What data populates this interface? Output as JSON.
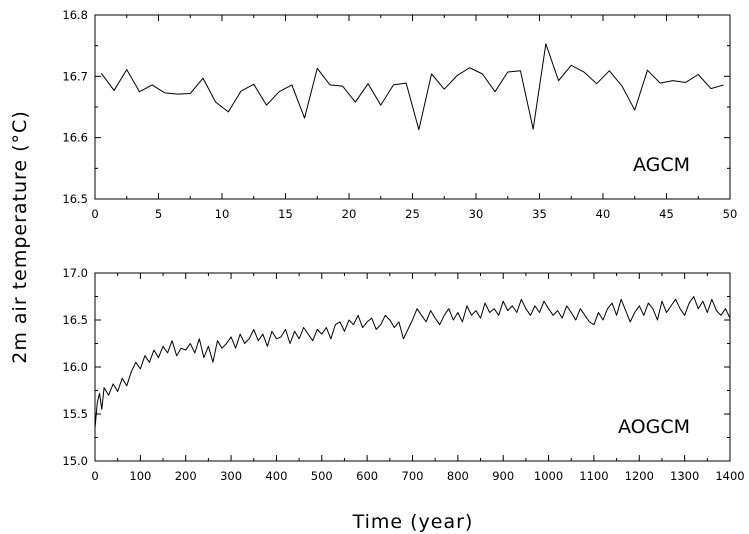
{
  "chart_data": [
    {
      "type": "line",
      "panel_label": "AGCM",
      "xlim": [
        0,
        50
      ],
      "ylim": [
        16.5,
        16.8
      ],
      "xticks": [
        "0",
        "5",
        "10",
        "15",
        "20",
        "25",
        "30",
        "35",
        "40",
        "45",
        "50"
      ],
      "yticks": [
        "16.5",
        "16.6",
        "16.7",
        "16.8"
      ],
      "series": [
        {
          "x": [
            0.5,
            1.5,
            2.5,
            3.5,
            4.5,
            5.5,
            6.5,
            7.5,
            8.5,
            9.5,
            10.5,
            11.5,
            12.5,
            13.5,
            14.5,
            15.5,
            16.5,
            17.5,
            18.5,
            19.5,
            20.5,
            21.5,
            22.5,
            23.5,
            24.5,
            25.5,
            26.5,
            27.5,
            28.5,
            29.5,
            30.5,
            31.5,
            32.5,
            33.5,
            34.5,
            35.5,
            36.5,
            37.5,
            38.5,
            39.5,
            40.5,
            41.5,
            42.5,
            43.5,
            44.5,
            45.5,
            46.5,
            47.5,
            48.5,
            49.5
          ],
          "values": [
            16.705,
            16.677,
            16.711,
            16.675,
            16.686,
            16.673,
            16.671,
            16.672,
            16.697,
            16.658,
            16.642,
            16.676,
            16.687,
            16.653,
            16.675,
            16.686,
            16.632,
            16.713,
            16.686,
            16.684,
            16.658,
            16.688,
            16.653,
            16.686,
            16.689,
            16.613,
            16.704,
            16.679,
            16.701,
            16.714,
            16.704,
            16.675,
            16.707,
            16.709,
            16.614,
            16.753,
            16.693,
            16.718,
            16.707,
            16.688,
            16.709,
            16.684,
            16.645,
            16.71,
            16.689,
            16.693,
            16.69,
            16.703,
            16.68,
            16.686
          ]
        }
      ]
    },
    {
      "type": "line",
      "panel_label": "AOGCM",
      "xlabel": "Time (year)",
      "xlim": [
        0,
        1400
      ],
      "ylim": [
        15.0,
        17.0
      ],
      "xticks": [
        "0",
        "100",
        "200",
        "300",
        "400",
        "500",
        "600",
        "700",
        "800",
        "900",
        "1000",
        "1100",
        "1200",
        "1300",
        "1400"
      ],
      "yticks": [
        "15.0",
        "15.5",
        "16.0",
        "16.5",
        "17.0"
      ],
      "series": [
        {
          "x": [
            0,
            5,
            10,
            15,
            20,
            30,
            40,
            50,
            60,
            70,
            80,
            90,
            100,
            110,
            120,
            130,
            140,
            150,
            160,
            170,
            180,
            190,
            200,
            210,
            220,
            230,
            240,
            250,
            260,
            270,
            280,
            290,
            300,
            310,
            320,
            330,
            340,
            350,
            360,
            370,
            380,
            390,
            400,
            410,
            420,
            430,
            440,
            450,
            460,
            470,
            480,
            490,
            500,
            510,
            520,
            530,
            540,
            550,
            560,
            570,
            580,
            590,
            600,
            610,
            620,
            630,
            640,
            650,
            660,
            670,
            680,
            690,
            700,
            710,
            720,
            730,
            740,
            750,
            760,
            770,
            780,
            790,
            800,
            810,
            820,
            830,
            840,
            850,
            860,
            870,
            880,
            890,
            900,
            910,
            920,
            930,
            940,
            950,
            960,
            970,
            980,
            990,
            1000,
            1010,
            1020,
            1030,
            1040,
            1050,
            1060,
            1070,
            1080,
            1090,
            1100,
            1110,
            1120,
            1130,
            1140,
            1150,
            1160,
            1170,
            1180,
            1190,
            1200,
            1210,
            1220,
            1230,
            1240,
            1250,
            1260,
            1270,
            1280,
            1290,
            1300,
            1310,
            1320,
            1330,
            1340,
            1350,
            1360,
            1370,
            1380,
            1390,
            1400
          ],
          "values": [
            15.35,
            15.62,
            15.72,
            15.55,
            15.78,
            15.7,
            15.82,
            15.74,
            15.88,
            15.8,
            15.95,
            16.05,
            15.98,
            16.12,
            16.05,
            16.18,
            16.1,
            16.22,
            16.15,
            16.28,
            16.12,
            16.2,
            16.18,
            16.25,
            16.15,
            16.3,
            16.1,
            16.22,
            16.05,
            16.28,
            16.2,
            16.25,
            16.32,
            16.2,
            16.35,
            16.25,
            16.3,
            16.4,
            16.28,
            16.35,
            16.22,
            16.38,
            16.3,
            16.32,
            16.4,
            16.25,
            16.38,
            16.3,
            16.42,
            16.35,
            16.28,
            16.4,
            16.35,
            16.42,
            16.3,
            16.45,
            16.48,
            16.38,
            16.5,
            16.45,
            16.55,
            16.42,
            16.48,
            16.52,
            16.4,
            16.45,
            16.55,
            16.5,
            16.42,
            16.48,
            16.3,
            16.4,
            16.5,
            16.62,
            16.55,
            16.48,
            16.6,
            16.52,
            16.45,
            16.55,
            16.62,
            16.5,
            16.58,
            16.48,
            16.65,
            16.55,
            16.6,
            16.52,
            16.68,
            16.58,
            16.62,
            16.55,
            16.7,
            16.6,
            16.65,
            16.58,
            16.72,
            16.62,
            16.55,
            16.65,
            16.58,
            16.7,
            16.62,
            16.55,
            16.6,
            16.52,
            16.65,
            16.58,
            16.5,
            16.62,
            16.55,
            16.48,
            16.45,
            16.58,
            16.5,
            16.62,
            16.68,
            16.55,
            16.72,
            16.6,
            16.48,
            16.58,
            16.65,
            16.55,
            16.68,
            16.62,
            16.5,
            16.7,
            16.58,
            16.65,
            16.72,
            16.62,
            16.55,
            16.68,
            16.75,
            16.62,
            16.7,
            16.58,
            16.72,
            16.6,
            16.55,
            16.62,
            16.52
          ]
        }
      ]
    }
  ],
  "shared_ylabel": "2m air temperature (°C)"
}
